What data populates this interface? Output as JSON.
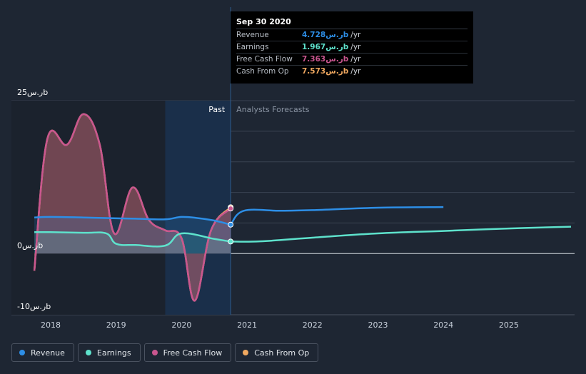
{
  "chart_data": {
    "type": "area",
    "y_axis": {
      "ticks": [
        {
          "value": 25,
          "label": "25ر.سb"
        },
        {
          "value": 0,
          "label": "0ر.سb"
        },
        {
          "value": -10,
          "label": "-10ر.سb"
        }
      ],
      "ylim": [
        -10,
        25
      ]
    },
    "x_axis": {
      "ticks": [
        "2018",
        "2019",
        "2020",
        "2021",
        "2022",
        "2023",
        "2024",
        "2025"
      ],
      "xlim": [
        2017.5,
        2025.95
      ]
    },
    "regions": {
      "past_label": "Past",
      "forecast_label": "Analysts Forecasts",
      "split_x": 2020.75
    },
    "series": [
      {
        "name": "Revenue",
        "color": "#2d8ee6",
        "points": [
          [
            2017.75,
            5.9
          ],
          [
            2018.0,
            6.0
          ],
          [
            2018.5,
            5.9
          ],
          [
            2018.9,
            5.8
          ],
          [
            2019.3,
            5.7
          ],
          [
            2019.75,
            5.6
          ],
          [
            2020.0,
            6.0
          ],
          [
            2020.25,
            5.8
          ],
          [
            2020.5,
            5.4
          ],
          [
            2020.75,
            4.728
          ]
        ],
        "forecast": [
          [
            2020.75,
            4.728
          ],
          [
            2020.95,
            7.0
          ],
          [
            2021.5,
            7.0
          ],
          [
            2022.0,
            7.1
          ],
          [
            2023.0,
            7.5
          ],
          [
            2024.0,
            7.6
          ]
        ]
      },
      {
        "name": "Earnings",
        "color": "#5ee2cc",
        "points": [
          [
            2017.75,
            3.5
          ],
          [
            2018.0,
            3.5
          ],
          [
            2018.5,
            3.4
          ],
          [
            2018.85,
            3.3
          ],
          [
            2019.0,
            1.6
          ],
          [
            2019.3,
            1.4
          ],
          [
            2019.75,
            1.3
          ],
          [
            2020.0,
            3.3
          ],
          [
            2020.5,
            2.4
          ],
          [
            2020.75,
            1.967
          ]
        ],
        "forecast": [
          [
            2020.75,
            1.967
          ],
          [
            2021.2,
            2.0
          ],
          [
            2022.0,
            2.6
          ],
          [
            2023.0,
            3.3
          ],
          [
            2024.0,
            3.7
          ],
          [
            2025.0,
            4.1
          ],
          [
            2025.95,
            4.4
          ]
        ]
      },
      {
        "name": "Free Cash Flow",
        "color": "#c9568f",
        "points": [
          [
            2017.75,
            -2.8
          ],
          [
            2017.95,
            18.8
          ],
          [
            2018.25,
            17.8
          ],
          [
            2018.5,
            22.8
          ],
          [
            2018.75,
            17.8
          ],
          [
            2018.97,
            3.3
          ],
          [
            2019.25,
            10.8
          ],
          [
            2019.5,
            5.5
          ],
          [
            2019.75,
            3.8
          ],
          [
            2020.0,
            2.5
          ],
          [
            2020.2,
            -7.7
          ],
          [
            2020.45,
            3.8
          ],
          [
            2020.75,
            7.363
          ]
        ]
      },
      {
        "name": "Cash From Op",
        "color": "#f0a860",
        "points": [
          [
            2017.75,
            -2.8
          ],
          [
            2017.95,
            18.8
          ],
          [
            2018.25,
            17.8
          ],
          [
            2018.5,
            22.8
          ],
          [
            2018.75,
            17.8
          ],
          [
            2018.97,
            3.3
          ],
          [
            2019.25,
            10.8
          ],
          [
            2019.5,
            5.5
          ],
          [
            2019.75,
            3.8
          ],
          [
            2020.0,
            2.5
          ],
          [
            2020.2,
            -7.7
          ],
          [
            2020.45,
            3.8
          ],
          [
            2020.75,
            7.573
          ]
        ]
      }
    ]
  },
  "tooltip": {
    "date": "Sep 30 2020",
    "rows": [
      {
        "label": "Revenue",
        "value": "4.728ر.سb",
        "unit": "/yr",
        "color": "#2d8ee6"
      },
      {
        "label": "Earnings",
        "value": "1.967ر.سb",
        "unit": "/yr",
        "color": "#5ee2cc"
      },
      {
        "label": "Free Cash Flow",
        "value": "7.363ر.سb",
        "unit": "/yr",
        "color": "#c9568f"
      },
      {
        "label": "Cash From Op",
        "value": "7.573ر.سb",
        "unit": "/yr",
        "color": "#f0a860"
      }
    ]
  },
  "legend": [
    {
      "label": "Revenue",
      "color": "#2d8ee6"
    },
    {
      "label": "Earnings",
      "color": "#5ee2cc"
    },
    {
      "label": "Free Cash Flow",
      "color": "#c9568f"
    },
    {
      "label": "Cash From Op",
      "color": "#f0a860"
    }
  ]
}
